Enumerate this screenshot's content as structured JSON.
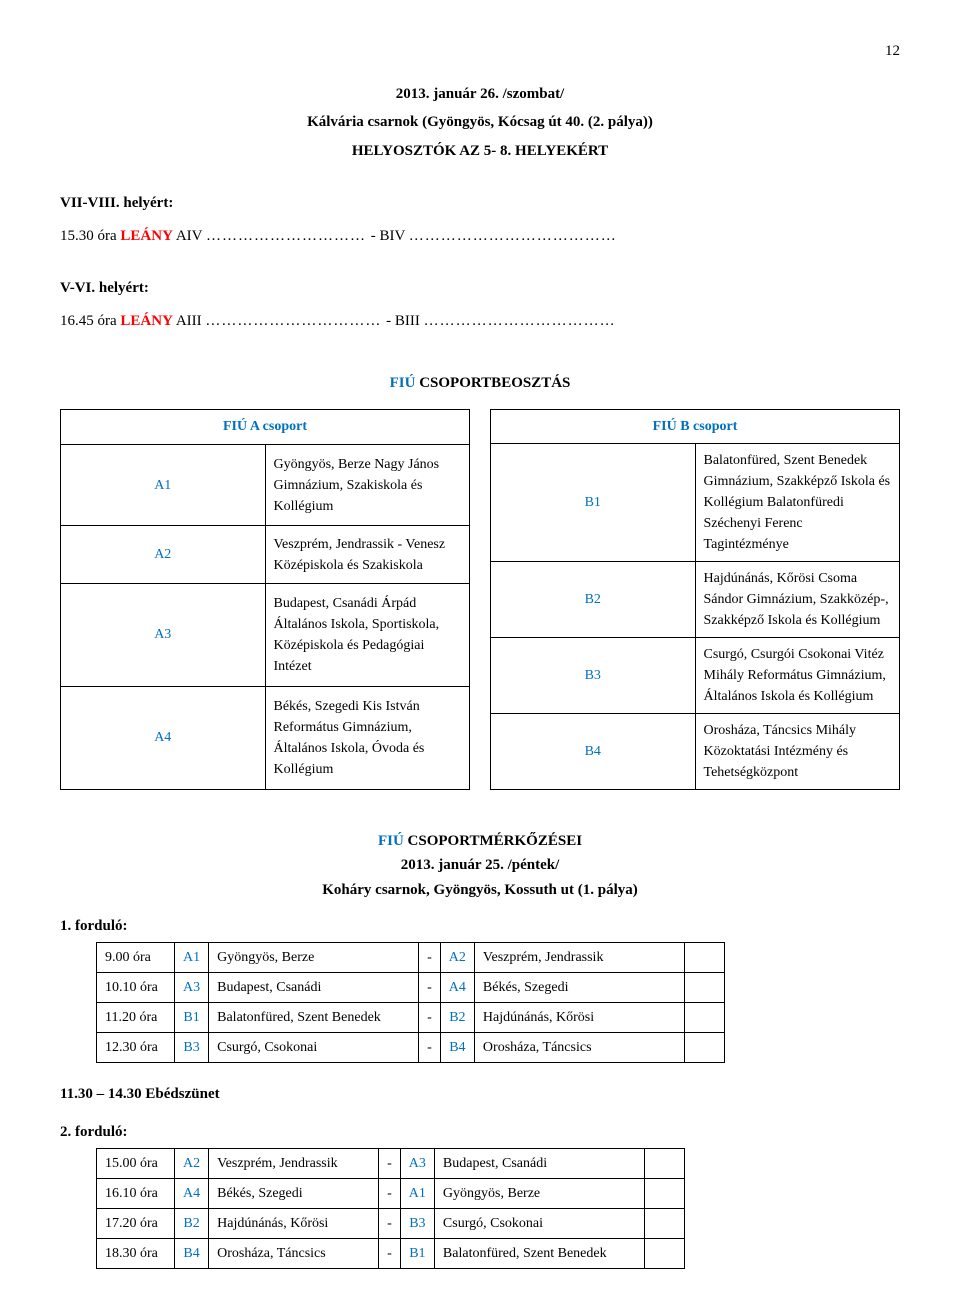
{
  "page_number": "12",
  "header": {
    "date_line": "2013. január 26. /szombat/",
    "venue_line": "Kálvária csarnok (Gyöngyös, Kócsag út 40. (2. pálya))",
    "title_line": "HELYOSZTÓK AZ 5- 8. HELYEKÉRT"
  },
  "placements": [
    {
      "label": "VII-VIII. helyért:",
      "time_prefix": "15.30 óra  ",
      "category_red": "LEÁNY",
      "team_a": " AIV ",
      "dots_a": "…………………………  ",
      "dash": "- BIV ",
      "dots_b": "…………………………………"
    },
    {
      "label": "V-VI. helyért:",
      "time_prefix": "16.45 óra  ",
      "category_red": "LEÁNY",
      "team_a": " AIII ",
      "dots_a": "……………………………  ",
      "dash": "- BIII ",
      "dots_b": "………………………………"
    }
  ],
  "group_section": {
    "title_blue": "FIÚ",
    "title_rest": " CSOPORTBEOSZTÁS",
    "group_a_header": "FIÚ A csoport",
    "group_b_header": "FIÚ B csoport",
    "group_a": [
      {
        "id": "A1",
        "text": "Gyöngyös, Berze Nagy János Gimnázium, Szakiskola és Kollégium"
      },
      {
        "id": "A2",
        "text": "Veszprém, Jendrassik - Venesz Középiskola és Szakiskola"
      },
      {
        "id": "A3",
        "text": "Budapest, Csanádi Árpád Általános Iskola, Sportiskola, Középiskola és Pedagógiai Intézet"
      },
      {
        "id": "A4",
        "text": "Békés, Szegedi Kis István Református Gimnázium, Általános Iskola, Óvoda és Kollégium"
      }
    ],
    "group_b": [
      {
        "id": "B1",
        "text": "Balatonfüred, Szent Benedek Gimnázium, Szakképző Iskola és Kollégium Balatonfüredi Széchenyi Ferenc Tagintézménye"
      },
      {
        "id": "B2",
        "text": "Hajdúnánás, Kőrösi Csoma Sándor Gimnázium, Szakközép-, Szakképző Iskola és Kollégium"
      },
      {
        "id": "B3",
        "text": "Csurgó, Csurgói Csokonai Vitéz Mihály Református Gimnázium, Általános Iskola és Kollégium"
      },
      {
        "id": "B4",
        "text": "Orosháza, Táncsics Mihály Közoktatási Intézmény és Tehetségközpont"
      }
    ]
  },
  "matches": {
    "title_blue": "FIÚ",
    "title_rest": " CSOPORTMÉRKŐZÉSEI",
    "date": "2013. január 25. /péntek/",
    "venue": "Koháry csarnok, Gyöngyös, Kossuth ut (1. pálya)",
    "round1_label": "1. forduló:",
    "round1": [
      {
        "time": "9.00 óra",
        "id_a": "A1",
        "team_a": "Gyöngyös, Berze",
        "id_b": "A2",
        "team_b": "Veszprém, Jendrassik"
      },
      {
        "time": "10.10 óra",
        "id_a": "A3",
        "team_a": "Budapest, Csanádi",
        "id_b": "A4",
        "team_b": "Békés, Szegedi"
      },
      {
        "time": "11.20 óra",
        "id_a": "B1",
        "team_a": "Balatonfüred, Szent Benedek",
        "id_b": "B2",
        "team_b": "Hajdúnánás, Kőrösi"
      },
      {
        "time": "12.30 óra",
        "id_a": "B3",
        "team_a": "Csurgó, Csokonai",
        "id_b": "B4",
        "team_b": "Orosháza, Táncsics"
      }
    ],
    "break_label": "11.30 – 14.30 Ebédszünet",
    "round2_label": "2. forduló:",
    "round2": [
      {
        "time": "15.00 óra",
        "id_a": "A2",
        "team_a": "Veszprém, Jendrassik",
        "id_b": "A3",
        "team_b": "Budapest, Csanádi"
      },
      {
        "time": "16.10 óra",
        "id_a": "A4",
        "team_a": "Békés, Szegedi",
        "id_b": "A1",
        "team_b": "Gyöngyös, Berze"
      },
      {
        "time": "17.20 óra",
        "id_a": "B2",
        "team_a": "Hajdúnánás, Kőrösi",
        "id_b": "B3",
        "team_b": "Csurgó, Csokonai"
      },
      {
        "time": "18.30 óra",
        "id_a": "B4",
        "team_a": "Orosháza, Táncsics",
        "id_b": "B1",
        "team_b": "Balatonfüred, Szent Benedek"
      }
    ]
  },
  "dash": "-"
}
